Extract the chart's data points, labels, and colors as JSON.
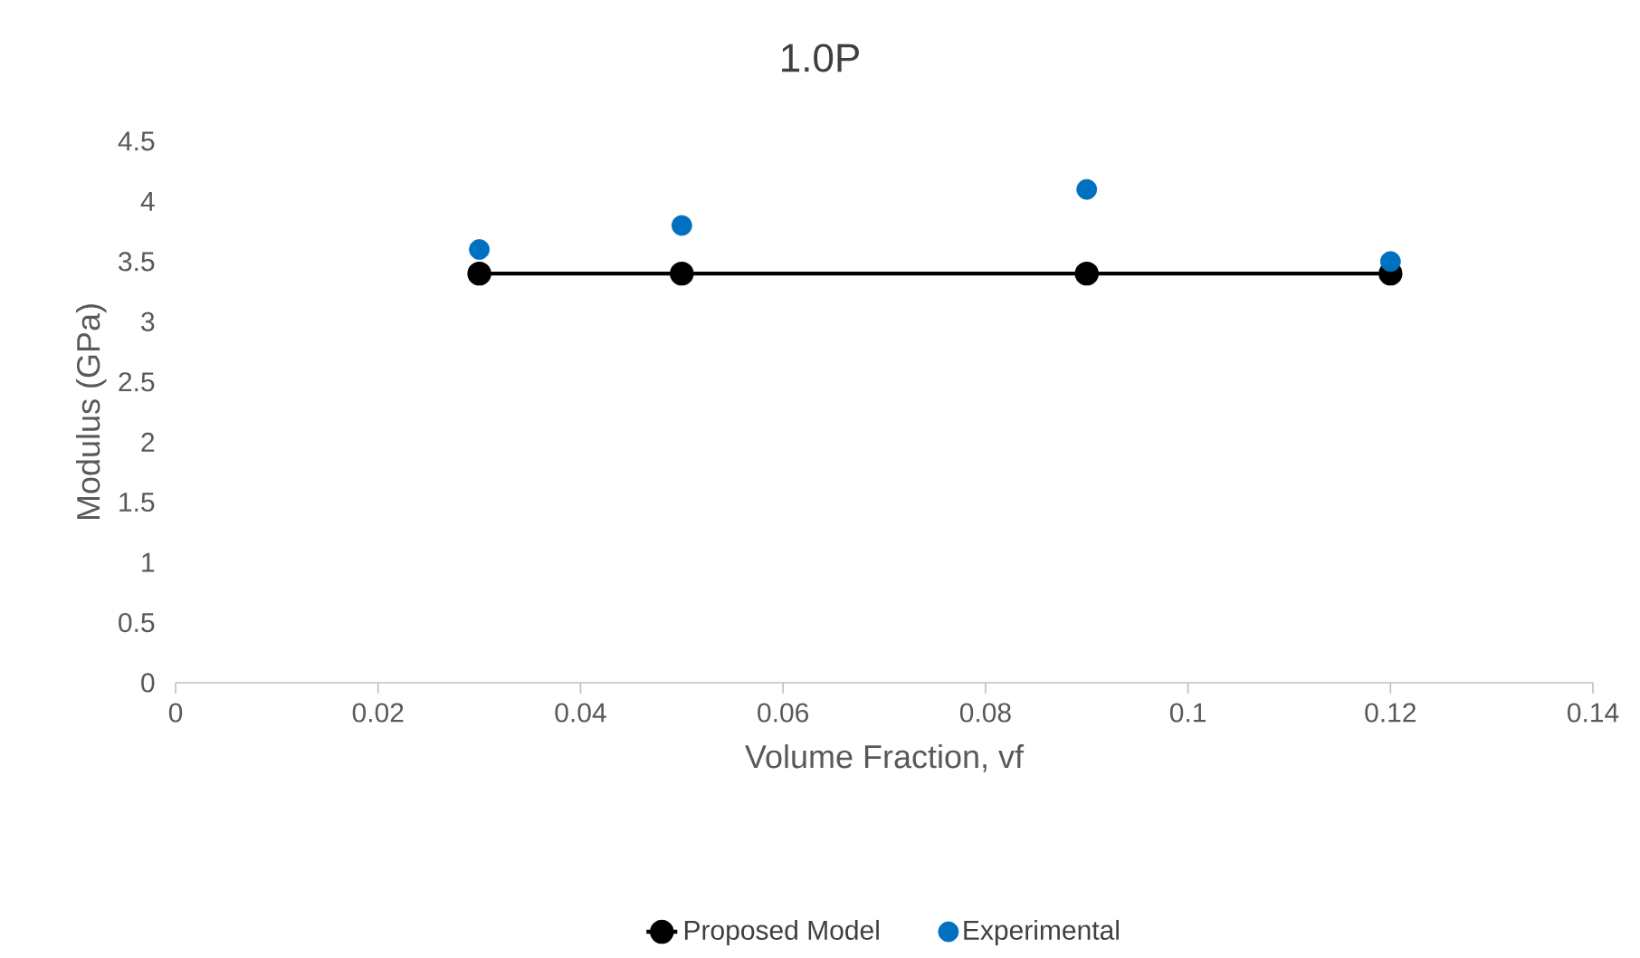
{
  "chart_data": {
    "type": "line",
    "title": "1.0P",
    "xlabel": "Volume Fraction, vf",
    "ylabel": "Modulus (GPa)",
    "x": [
      0.03,
      0.05,
      0.09,
      0.12
    ],
    "series": [
      {
        "name": "Proposed Model",
        "color": "#000000",
        "marker": "circle",
        "line_style": "solid",
        "values": [
          3.4,
          3.4,
          3.4,
          3.4
        ]
      },
      {
        "name": "Experimental",
        "type": "scatter",
        "color": "#0070c0",
        "marker": "circle",
        "values": [
          3.6,
          3.8,
          4.1,
          3.5
        ]
      }
    ],
    "xlim": [
      0,
      0.14
    ],
    "xticks": [
      0,
      0.02,
      0.04,
      0.06,
      0.08,
      0.1,
      0.12,
      0.14
    ],
    "ylim": [
      0,
      4.5
    ],
    "yticks": [
      0,
      0.5,
      1,
      1.5,
      2,
      2.5,
      3,
      3.5,
      4,
      4.5
    ],
    "grid": false,
    "legend": "bottom"
  }
}
